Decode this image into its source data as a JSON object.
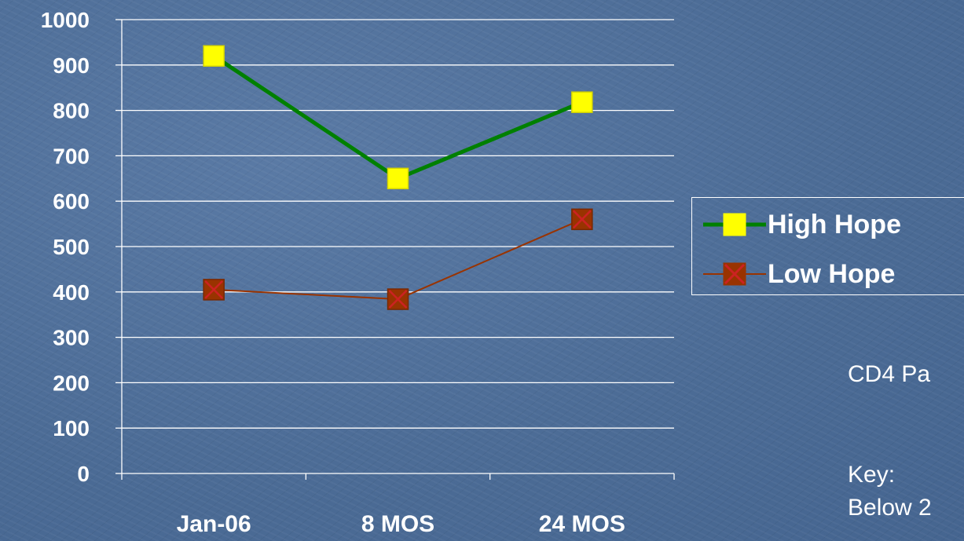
{
  "chart_data": {
    "type": "line",
    "categories": [
      "Jan-06",
      "8 MOS",
      "24 MOS"
    ],
    "series": [
      {
        "name": "High Hope",
        "values": [
          920,
          650,
          818
        ],
        "color": "#008000",
        "marker": "square",
        "marker_color": "#ffff00"
      },
      {
        "name": "Low Hope",
        "values": [
          405,
          384,
          560
        ],
        "color": "#993300",
        "marker": "square-x",
        "marker_color": "#993300"
      }
    ],
    "y_ticks": [
      "0",
      "100",
      "200",
      "300",
      "400",
      "500",
      "600",
      "700",
      "800",
      "900",
      "1000"
    ],
    "ylim": [
      0,
      1000
    ],
    "grid": true,
    "legend": "right"
  },
  "side_text": {
    "line1": "CD4 Pa",
    "line2": "Key:",
    "line3": "Below 2"
  }
}
